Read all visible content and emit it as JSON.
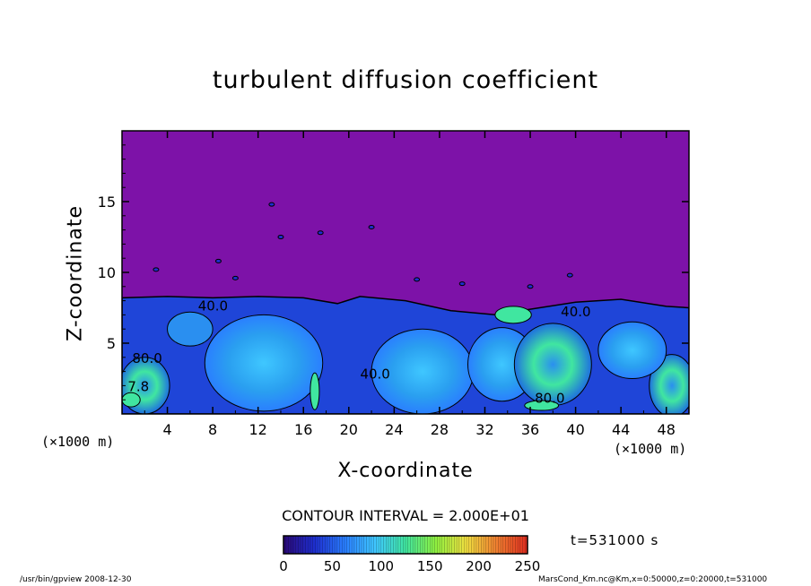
{
  "chart_data": {
    "type": "heatmap",
    "title": "turbulent diffusion coefficient",
    "xlabel": "X-coordinate",
    "ylabel": "Z-coordinate",
    "x_unit": "(×1000 m)",
    "y_unit": "(×1000 m)",
    "xlim": [
      0,
      50
    ],
    "ylim": [
      0,
      20
    ],
    "x_ticks": [
      4,
      8,
      12,
      16,
      20,
      24,
      28,
      32,
      36,
      40,
      44,
      48
    ],
    "y_ticks": [
      5,
      10,
      15
    ],
    "colorbar": {
      "min": 0,
      "max": 250,
      "ticks": [
        0,
        50,
        100,
        150,
        200,
        250
      ],
      "colors": [
        "#2a0a7a",
        "#1e2fd0",
        "#2a7fff",
        "#3fc7ff",
        "#40e6a0",
        "#8ff040",
        "#f0e040",
        "#f08030",
        "#e03020"
      ]
    },
    "background_color": "#7d12a8",
    "contour_labels": [
      {
        "text": "40.0",
        "x": 6.7,
        "z": 7.3
      },
      {
        "text": "80.0",
        "x": 0.9,
        "z": 3.6
      },
      {
        "text": "40.0",
        "x": 21.0,
        "z": 2.5
      },
      {
        "text": "40.0",
        "x": 38.7,
        "z": 6.9
      },
      {
        "text": "80.0",
        "x": 36.4,
        "z": 0.8
      },
      {
        "text": "7.8",
        "x": 0.5,
        "z": 1.6
      }
    ],
    "contour_interval": "CONTOUR INTERVAL = 2.000E+01",
    "time_label": "t=531000 s"
  },
  "footer": {
    "left": "/usr/bin/gpview   2008-12-30",
    "right": "MarsCond_Km.nc@Km,x=0:50000,z=0:20000,t=531000"
  }
}
